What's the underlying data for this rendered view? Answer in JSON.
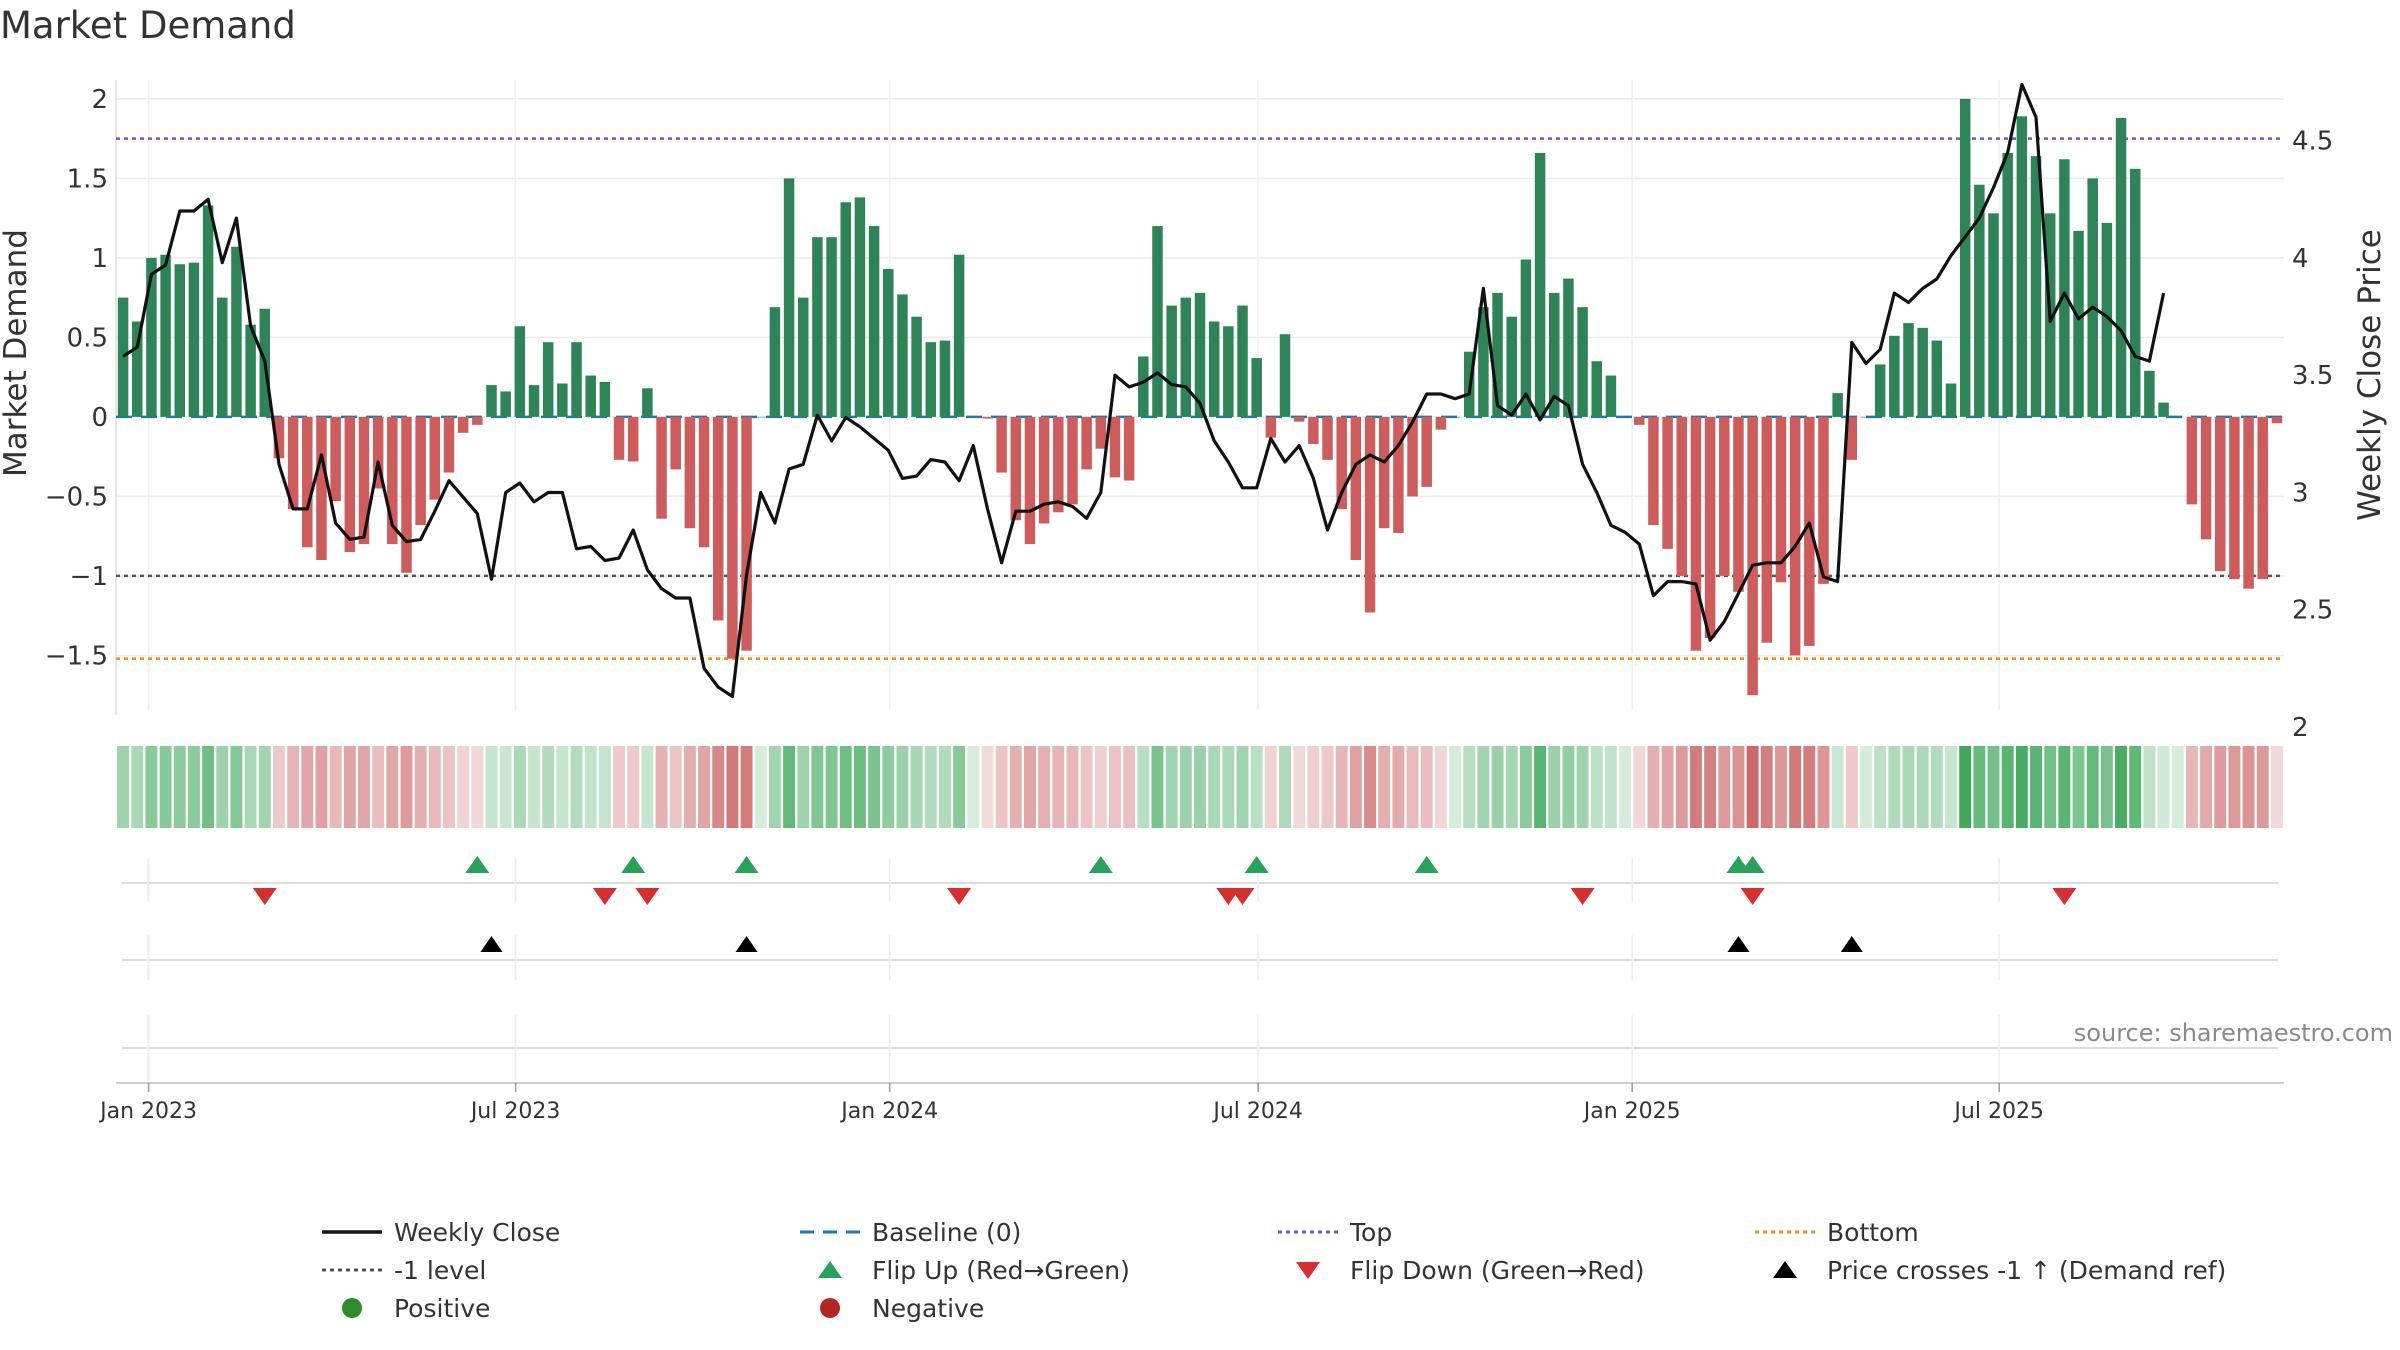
{
  "chart_data": {
    "type": "bar+line",
    "title": "Market Demand",
    "ylabel": "Market Demand",
    "y2label": "Weekly Close Price",
    "ylim": [
      -1.95,
      2.15
    ],
    "y2lim": [
      2.0,
      4.78
    ],
    "yticks": [
      2,
      1.5,
      1,
      0.5,
      0,
      -0.5,
      -1,
      -1.5
    ],
    "ytick_labels": [
      "2",
      "1.5",
      "1",
      "0.5",
      "0",
      "−0.5",
      "−1",
      "−1.5"
    ],
    "y2ticks": [
      4.5,
      4,
      3.5,
      3,
      2.5,
      2
    ],
    "y2tick_labels": [
      "4.5",
      "4",
      "3.5",
      "3",
      "2.5",
      "2"
    ],
    "reference_lines": {
      "top": 1.75,
      "bottom": -1.52,
      "minus_one": -1,
      "baseline": 0
    },
    "x_tick_labels": [
      "Jan 2023",
      "Jul 2023",
      "Jan 2024",
      "Jul 2024",
      "Jan 2025",
      "Jul 2025"
    ],
    "x_tick_week_index": [
      2.3,
      28.2,
      54.6,
      80.6,
      107,
      132.9
    ],
    "demand": [
      0.75,
      0.6,
      1.0,
      1.02,
      0.96,
      0.97,
      1.33,
      0.75,
      1.07,
      0.58,
      0.68,
      -0.26,
      -0.58,
      -0.82,
      -0.9,
      -0.53,
      -0.85,
      -0.8,
      -0.45,
      -0.8,
      -0.98,
      -0.68,
      -0.52,
      -0.35,
      -0.1,
      -0.05,
      0.2,
      0.16,
      0.57,
      0.2,
      0.47,
      0.21,
      0.47,
      0.26,
      0.22,
      -0.27,
      -0.28,
      0.18,
      -0.64,
      -0.33,
      -0.7,
      -0.82,
      -1.28,
      -1.52,
      -1.47,
      0,
      0.69,
      1.5,
      0.75,
      1.13,
      1.13,
      1.35,
      1.38,
      1.2,
      0.93,
      0.77,
      0.63,
      0.47,
      0.48,
      1.02,
      0.0,
      -0.01,
      -0.35,
      -0.65,
      -0.8,
      -0.67,
      -0.6,
      -0.55,
      -0.33,
      -0.2,
      -0.38,
      -0.4,
      0.38,
      1.2,
      0.7,
      0.75,
      0.78,
      0.6,
      0.57,
      0.7,
      0.37,
      -0.13,
      0.52,
      -0.03,
      -0.17,
      -0.27,
      -0.58,
      -0.9,
      -1.23,
      -0.7,
      -0.73,
      -0.5,
      -0.44,
      -0.08,
      0.0,
      0.41,
      0.69,
      0.78,
      0.63,
      0.99,
      1.66,
      0.78,
      0.87,
      0.69,
      0.35,
      0.26,
      0.0,
      -0.05,
      -0.68,
      -0.83,
      -1.0,
      -1.47,
      -1.39,
      -1.0,
      -1.1,
      -1.75,
      -1.42,
      -1.04,
      -1.5,
      -1.44,
      -1.05,
      0.15,
      -0.27,
      0.0,
      0.33,
      0.51,
      0.59,
      0.56,
      0.48,
      0.21,
      2.0,
      1.46,
      1.28,
      1.66,
      1.89,
      1.64,
      1.28,
      1.62,
      1.17,
      1.5,
      1.22,
      1.88,
      1.56,
      0.29,
      0.09,
      0.0,
      -0.55,
      -0.77,
      -0.97,
      -1.02,
      -1.08,
      -1.02,
      -0.04
    ],
    "weekly_close": [
      3.58,
      3.62,
      3.93,
      3.97,
      4.2,
      4.2,
      4.25,
      3.98,
      4.17,
      3.71,
      3.56,
      3.12,
      2.93,
      2.93,
      3.16,
      2.87,
      2.8,
      2.81,
      3.13,
      2.86,
      2.79,
      2.8,
      2.92,
      3.05,
      2.98,
      2.91,
      2.63,
      3.0,
      3.04,
      2.96,
      3.0,
      3.0,
      2.76,
      2.77,
      2.71,
      2.72,
      2.84,
      2.67,
      2.59,
      2.55,
      2.55,
      2.25,
      2.17,
      2.13,
      2.65,
      3.0,
      2.87,
      3.1,
      3.12,
      3.33,
      3.22,
      3.32,
      3.28,
      3.23,
      3.18,
      3.06,
      3.07,
      3.14,
      3.13,
      3.05,
      3.2,
      2.93,
      2.7,
      2.92,
      2.92,
      2.95,
      2.96,
      2.94,
      2.89,
      3.0,
      3.5,
      3.45,
      3.47,
      3.51,
      3.46,
      3.45,
      3.38,
      3.22,
      3.13,
      3.02,
      3.02,
      3.23,
      3.13,
      3.2,
      3.06,
      2.84,
      3.0,
      3.12,
      3.16,
      3.13,
      3.2,
      3.3,
      3.42,
      3.42,
      3.4,
      3.42,
      3.87,
      3.37,
      3.33,
      3.42,
      3.31,
      3.41,
      3.37,
      3.12,
      3.0,
      2.86,
      2.83,
      2.78,
      2.56,
      2.62,
      2.62,
      2.61,
      2.37,
      2.45,
      2.57,
      2.69,
      2.7,
      2.7,
      2.77,
      2.87,
      2.64,
      2.62,
      3.64,
      3.55,
      3.61,
      3.85,
      3.81,
      3.87,
      3.91,
      4.01,
      4.09,
      4.17,
      4.3,
      4.45,
      4.74,
      4.6,
      3.73,
      3.85,
      3.74,
      3.79,
      3.75,
      3.69,
      3.58,
      3.56,
      3.85
    ],
    "flip_up_weeks": [
      25,
      36,
      44,
      69,
      80,
      92,
      114,
      115
    ],
    "flip_down_weeks": [
      10,
      34,
      37,
      59,
      78,
      79,
      103,
      115,
      137
    ],
    "price_cross_weeks": [
      26,
      44,
      114,
      122
    ],
    "legend": [
      {
        "label": "Weekly Close",
        "marker": "line",
        "color": "#111111"
      },
      {
        "label": "Baseline (0)",
        "marker": "dash",
        "color": "#1f77b4"
      },
      {
        "label": "Top",
        "marker": "dot",
        "color": "#6b5bc4"
      },
      {
        "label": "Bottom",
        "marker": "dot",
        "color": "#ef8a1e"
      },
      {
        "label": "-1 level",
        "marker": "dot",
        "color": "#555555"
      },
      {
        "label": "Flip Up (Red→Green)",
        "marker": "triangle-up",
        "color": "#27a25a"
      },
      {
        "label": "Flip Down (Green→Red)",
        "marker": "triangle-down",
        "color": "#d62f2f"
      },
      {
        "label": "Price crosses -1 ↑ (Demand ref)",
        "marker": "triangle-up",
        "color": "#000000"
      },
      {
        "label": "Positive",
        "marker": "circle",
        "color": "#2d8a2d"
      },
      {
        "label": "Negative",
        "marker": "circle",
        "color": "#b32424"
      }
    ],
    "colors": {
      "positive_bar": "#2e8457",
      "negative_bar": "#cd5c5c",
      "heat_pos": "#3fa85a",
      "heat_neg": "#c75a5a",
      "close_line": "#111111",
      "baseline": "#1f77b4",
      "top": "#6b5bc4",
      "bottom": "#ef8a1e",
      "minus_one": "#555555",
      "flip_up": "#27a25a",
      "flip_down": "#d62f2f",
      "price_cross": "#000000"
    }
  },
  "source_label": "source: sharemaestro.com"
}
